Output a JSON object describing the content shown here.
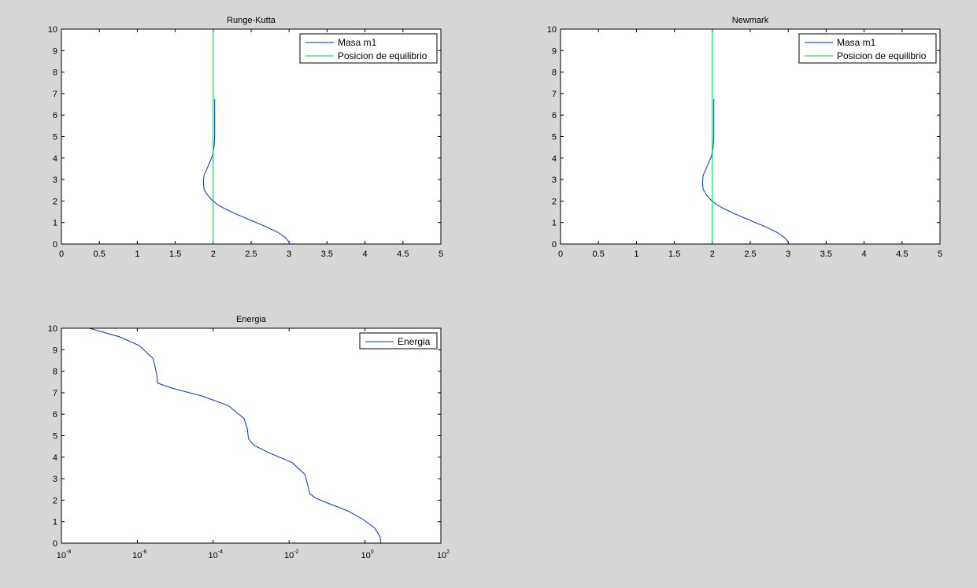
{
  "figure": {
    "background": "#d6d6d6",
    "axes_color": "#ffffff"
  },
  "chart_data": [
    {
      "id": "rk",
      "type": "line",
      "title": "Runge-Kutta",
      "xlabel": "",
      "ylabel": "",
      "xlim": [
        0,
        5
      ],
      "ylim": [
        0,
        10
      ],
      "xticks": [
        "0",
        "0.5",
        "1",
        "1.5",
        "2",
        "2.5",
        "3",
        "3.5",
        "4",
        "4.5",
        "5"
      ],
      "yticks": [
        "0",
        "1",
        "2",
        "3",
        "4",
        "5",
        "6",
        "7",
        "8",
        "9",
        "10"
      ],
      "legend": "top-right",
      "series": [
        {
          "name": "Masa m1",
          "color": "#0033cc",
          "x": [
            3.0,
            2.95,
            2.85,
            2.7,
            2.5,
            2.3,
            2.15,
            2.05,
            1.98,
            1.92,
            1.88,
            1.87,
            1.88,
            1.93,
            1.99,
            2.01,
            2.02,
            2.02,
            2.02,
            2.02,
            2.02
          ],
          "y": [
            0.1,
            0.3,
            0.55,
            0.8,
            1.1,
            1.4,
            1.65,
            1.85,
            2.05,
            2.3,
            2.55,
            2.85,
            3.2,
            3.6,
            4.1,
            4.5,
            5.0,
            5.5,
            6.0,
            6.4,
            6.75
          ]
        },
        {
          "name": "Posicion de equilibrio",
          "color": "#00cc44",
          "x": [
            2,
            2
          ],
          "y": [
            0,
            10
          ]
        }
      ]
    },
    {
      "id": "nm",
      "type": "line",
      "title": "Newmark",
      "xlabel": "",
      "ylabel": "",
      "xlim": [
        0,
        5
      ],
      "ylim": [
        0,
        10
      ],
      "xticks": [
        "0",
        "0.5",
        "1",
        "1.5",
        "2",
        "2.5",
        "3",
        "3.5",
        "4",
        "4.5",
        "5"
      ],
      "yticks": [
        "0",
        "1",
        "2",
        "3",
        "4",
        "5",
        "6",
        "7",
        "8",
        "9",
        "10"
      ],
      "legend": "top-right",
      "series": [
        {
          "name": "Masa m1",
          "color": "#0033cc",
          "x": [
            3.0,
            2.95,
            2.85,
            2.7,
            2.5,
            2.3,
            2.15,
            2.05,
            1.98,
            1.92,
            1.88,
            1.87,
            1.88,
            1.93,
            1.99,
            2.01,
            2.02,
            2.02,
            2.02,
            2.02,
            2.02
          ],
          "y": [
            0.1,
            0.3,
            0.55,
            0.8,
            1.1,
            1.4,
            1.65,
            1.85,
            2.05,
            2.3,
            2.55,
            2.85,
            3.2,
            3.6,
            4.1,
            4.5,
            5.0,
            5.5,
            6.0,
            6.4,
            6.75
          ]
        },
        {
          "name": "Posicion de equilibrio",
          "color": "#00cc44",
          "x": [
            2,
            2
          ],
          "y": [
            0,
            10
          ]
        }
      ]
    },
    {
      "id": "en",
      "type": "line",
      "title": "Energia",
      "xlabel": "",
      "ylabel": "",
      "xscale": "log",
      "xlim": [
        1e-08,
        100
      ],
      "ylim": [
        0,
        10
      ],
      "xticks": [
        {
          "base": "10",
          "exp": "-8"
        },
        {
          "base": "10",
          "exp": "-6"
        },
        {
          "base": "10",
          "exp": "-4"
        },
        {
          "base": "10",
          "exp": "-2"
        },
        {
          "base": "10",
          "exp": "0"
        },
        {
          "base": "10",
          "exp": "2"
        }
      ],
      "yticks": [
        "0",
        "1",
        "2",
        "3",
        "4",
        "5",
        "6",
        "7",
        "8",
        "9",
        "10"
      ],
      "legend": "top-right",
      "series": [
        {
          "name": "Energia",
          "color": "#0033cc",
          "x": [
            2.6,
            2.5,
            1.8,
            0.9,
            0.35,
            0.11,
            0.05,
            0.035,
            0.032,
            0.026,
            0.012,
            0.003,
            0.0012,
            0.00085,
            0.0008,
            0.00065,
            0.00025,
            5e-05,
            8.5e-06,
            3.4e-06,
            3.3e-06,
            2.6e-06,
            1.1e-06,
            3.4e-07,
            5.5e-08
          ],
          "y": [
            0,
            0.3,
            0.7,
            1.1,
            1.5,
            1.85,
            2.1,
            2.3,
            2.6,
            3.2,
            3.75,
            4.2,
            4.55,
            4.85,
            5.3,
            5.8,
            6.4,
            6.85,
            7.2,
            7.45,
            7.8,
            8.6,
            9.2,
            9.6,
            10
          ]
        }
      ]
    }
  ]
}
